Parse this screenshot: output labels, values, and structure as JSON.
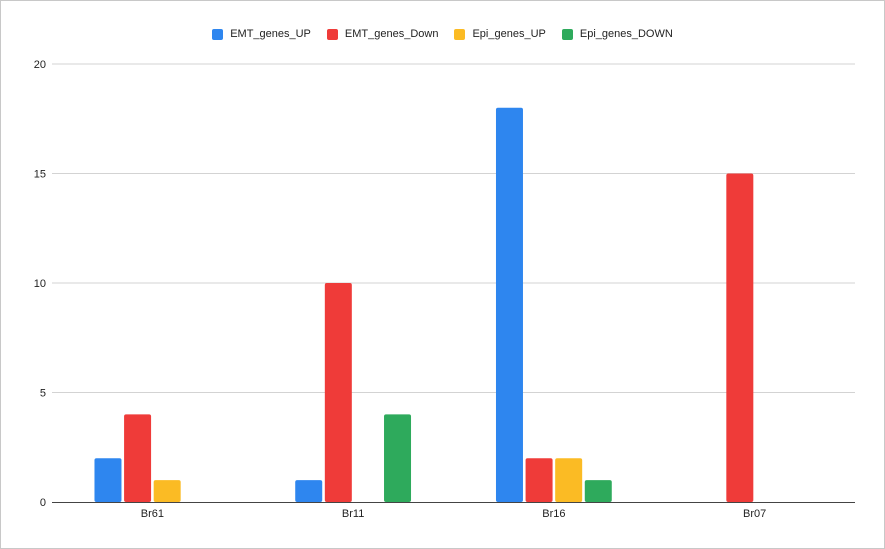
{
  "chart_data": {
    "type": "bar",
    "categories": [
      "Br61",
      "Br11",
      "Br16",
      "Br07"
    ],
    "series": [
      {
        "name": "EMT_genes_UP",
        "color": "#2e86ef",
        "values": [
          2,
          1,
          18,
          0
        ]
      },
      {
        "name": "EMT_genes_Down",
        "color": "#ef3b39",
        "values": [
          4,
          10,
          2,
          15
        ]
      },
      {
        "name": "Epi_genes_UP",
        "color": "#fbbb24",
        "values": [
          1,
          0,
          2,
          0
        ]
      },
      {
        "name": "Epi_genes_DOWN",
        "color": "#2eaa5c",
        "values": [
          0,
          4,
          1,
          0
        ]
      }
    ],
    "yticks": [
      0,
      5,
      10,
      15,
      20
    ],
    "ylim": [
      0,
      20
    ],
    "grid": true,
    "legend_position": "top-center",
    "title": "",
    "xlabel": "",
    "ylabel": ""
  }
}
